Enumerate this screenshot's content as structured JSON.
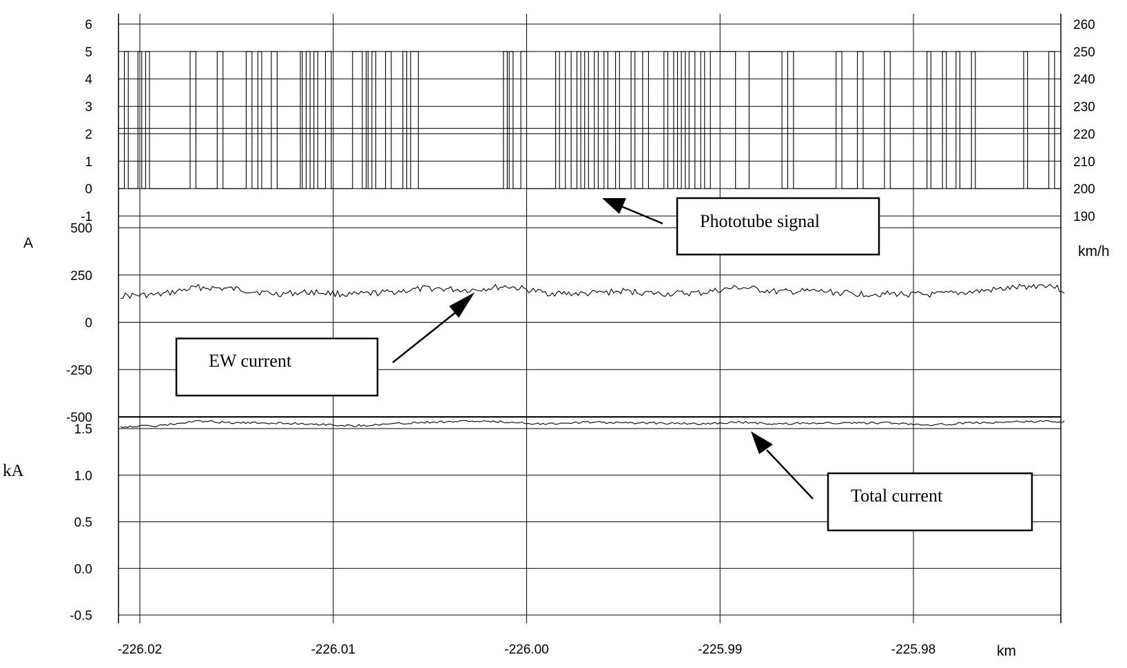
{
  "chart_data": [
    {
      "type": "line",
      "panel": "top",
      "x_axis": {
        "range": [
          -226.021,
          -225.9722
        ],
        "ticks": [
          -226.02,
          -226.01,
          -226.0,
          -225.99,
          -225.98
        ],
        "tick_labels": [
          "-226.02",
          "-226.01",
          "-226.00",
          "-225.99",
          "-225.98"
        ],
        "label": "km"
      },
      "y_axis_left": {
        "range": [
          -1,
          6
        ],
        "ticks": [
          6,
          5,
          4,
          3,
          2,
          1,
          0,
          -1
        ],
        "tick_labels": [
          "6",
          "5",
          "4",
          "3",
          "2",
          "1",
          "0",
          "-1"
        ],
        "label": ""
      },
      "y_axis_right": {
        "range": [
          190,
          260
        ],
        "ticks": [
          260,
          250,
          240,
          230,
          220,
          210,
          200,
          190
        ],
        "tick_labels": [
          "260",
          "250",
          "240",
          "230",
          "220",
          "210",
          "200",
          "190"
        ],
        "label": "km/h"
      },
      "grid": true,
      "series": [
        {
          "name": "Phototube signal",
          "low": 0,
          "high": 5,
          "pulses": [
            [
              -226.0208,
              -226.0206
            ],
            [
              -226.0201,
              -226.0199
            ],
            [
              -226.0197,
              -226.0195
            ],
            [
              -226.0174,
              -226.0171
            ],
            [
              -226.016,
              -226.0157
            ],
            [
              -226.0145,
              -226.0142
            ],
            [
              -226.0139,
              -226.0137
            ],
            [
              -226.0132,
              -226.0129
            ],
            [
              -226.0117,
              -226.0116
            ],
            [
              -226.0114,
              -226.0112
            ],
            [
              -226.011,
              -226.0108
            ],
            [
              -226.0104,
              -226.0101
            ],
            [
              -226.009,
              -226.0085
            ],
            [
              -226.0083,
              -226.0082
            ],
            [
              -226.008,
              -226.0078
            ],
            [
              -226.0073,
              -226.007
            ],
            [
              -226.0064,
              -226.0062
            ],
            [
              -226.006,
              -226.0056
            ],
            [
              -226.0012,
              -226.001
            ],
            [
              -226.0009,
              -226.0007
            ],
            [
              -226.0003,
              -226.0
            ],
            [
              -225.9985,
              -225.9983
            ],
            [
              -225.998,
              -225.9977
            ],
            [
              -225.9974,
              -225.9972
            ],
            [
              -225.997,
              -225.9968
            ],
            [
              -225.9965,
              -225.9963
            ],
            [
              -225.996,
              -225.9958
            ],
            [
              -225.9954,
              -225.9952
            ],
            [
              -225.9946,
              -225.9944
            ],
            [
              -225.994,
              -225.9937
            ],
            [
              -225.9929,
              -225.9927
            ],
            [
              -225.9924,
              -225.9922
            ],
            [
              -225.992,
              -225.9918
            ],
            [
              -225.9916,
              -225.9913
            ],
            [
              -225.991,
              -225.9908
            ],
            [
              -225.9905,
              -225.9892
            ],
            [
              -225.9885,
              -225.9868
            ],
            [
              -225.9865,
              -225.9862
            ],
            [
              -225.984,
              -225.9837
            ],
            [
              -225.9829,
              -225.9826
            ],
            [
              -225.9815,
              -225.9812
            ],
            [
              -225.9793,
              -225.9791
            ],
            [
              -225.9785,
              -225.9783
            ],
            [
              -225.9778,
              -225.9776
            ],
            [
              -225.977,
              -225.9768
            ],
            [
              -225.9743,
              -225.9741
            ],
            [
              -225.973,
              -225.9727
            ]
          ]
        }
      ],
      "annotation": "Phototube signal"
    },
    {
      "type": "line",
      "panel": "middle",
      "x_axis": {
        "range": [
          -226.021,
          -225.9722
        ]
      },
      "y_axis": {
        "range": [
          -500,
          500
        ],
        "ticks": [
          500,
          250,
          0,
          -250,
          -500
        ],
        "tick_labels": [
          "500",
          "250",
          "0",
          "-250",
          "-500"
        ],
        "label": "A"
      },
      "grid": true,
      "series": [
        {
          "name": "EW current",
          "x": [
            -226.021,
            -226.019,
            -226.017,
            -226.015,
            -226.013,
            -226.011,
            -226.009,
            -226.007,
            -226.005,
            -226.003,
            -226.001,
            -225.999,
            -225.997,
            -225.995,
            -225.993,
            -225.991,
            -225.989,
            -225.987,
            -225.985,
            -225.983,
            -225.981,
            -225.979,
            -225.977,
            -225.975,
            -225.973,
            -225.9722
          ],
          "values": [
            140,
            145,
            185,
            175,
            150,
            160,
            145,
            160,
            180,
            170,
            190,
            155,
            150,
            165,
            150,
            155,
            185,
            160,
            165,
            150,
            150,
            145,
            160,
            180,
            200,
            165
          ]
        }
      ],
      "annotation": "EW current"
    },
    {
      "type": "line",
      "panel": "bottom",
      "x_axis": {
        "range": [
          -226.021,
          -225.9722
        ]
      },
      "y_axis": {
        "range": [
          -0.5,
          1.5
        ],
        "ticks": [
          1.5,
          1.0,
          0.5,
          0.0,
          -0.5
        ],
        "tick_labels": [
          "1.5",
          "1.0",
          "0.5",
          "0.0",
          "-0.5"
        ],
        "label": "kA"
      },
      "grid": true,
      "series": [
        {
          "name": "Total current",
          "x": [
            -226.021,
            -226.019,
            -226.017,
            -226.015,
            -226.013,
            -226.011,
            -226.009,
            -226.007,
            -226.005,
            -226.003,
            -226.001,
            -225.999,
            -225.997,
            -225.995,
            -225.993,
            -225.991,
            -225.989,
            -225.987,
            -225.985,
            -225.983,
            -225.981,
            -225.979,
            -225.977,
            -225.975,
            -225.973,
            -225.9722
          ],
          "values": [
            1.52,
            1.53,
            1.58,
            1.56,
            1.56,
            1.55,
            1.53,
            1.55,
            1.57,
            1.58,
            1.57,
            1.55,
            1.57,
            1.56,
            1.56,
            1.55,
            1.57,
            1.55,
            1.56,
            1.56,
            1.56,
            1.54,
            1.56,
            1.57,
            1.58,
            1.57
          ]
        }
      ],
      "annotation": "Total current"
    }
  ]
}
